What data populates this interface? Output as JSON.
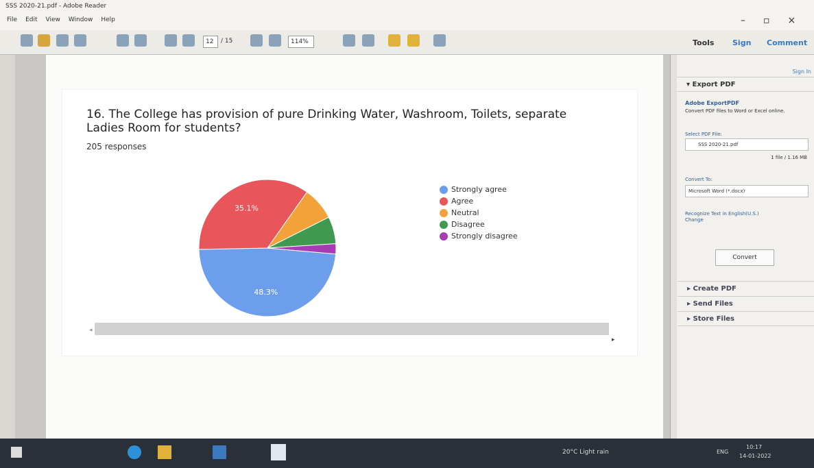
{
  "window": {
    "title": "SSS 2020-21.pdf - Adobe Reader",
    "menu": [
      "File",
      "Edit",
      "View",
      "Window",
      "Help"
    ]
  },
  "toolbar": {
    "page": "12",
    "pages": "/ 15",
    "zoom": "114%"
  },
  "tabs": [
    "Tools",
    "Sign",
    "Comment"
  ],
  "panel": {
    "sign_in": "Sign In",
    "export_title": "Export PDF",
    "service": "Adobe ExportPDF",
    "description": "Convert PDF files to Word or Excel online.",
    "select_label": "Select PDF File:",
    "file": "SSS 2020-21.pdf",
    "file_info": "1 file / 1.16 MB",
    "convert_to": "Convert To:",
    "format": "Microsoft Word (*.docx)",
    "recognize": "Recognize Text in English(U.S.)",
    "change": "Change",
    "button": "Convert",
    "sections": [
      "Create PDF",
      "Send Files",
      "Store Files"
    ]
  },
  "chart_data": {
    "type": "pie",
    "title": "16. The College has provision of pure Drinking Water, Washroom, Toilets, separate Ladies Room for students?",
    "subtitle": "205 responses",
    "categories": [
      "Strongly agree",
      "Agree",
      "Neutral",
      "Disagree",
      "Strongly disagree"
    ],
    "values": [
      48.3,
      35.1,
      7.8,
      6.4,
      2.4
    ],
    "value_labels": [
      "48.3%",
      "35.1%",
      null,
      null,
      null
    ],
    "colors": [
      "#6d9eeb",
      "#e8555a",
      "#f3a23a",
      "#3f9a4f",
      "#a93bb5"
    ]
  },
  "taskbar": {
    "weather": "20°C Light rain",
    "language": "ENG",
    "time": "10:17",
    "date": "14-01-2022"
  }
}
